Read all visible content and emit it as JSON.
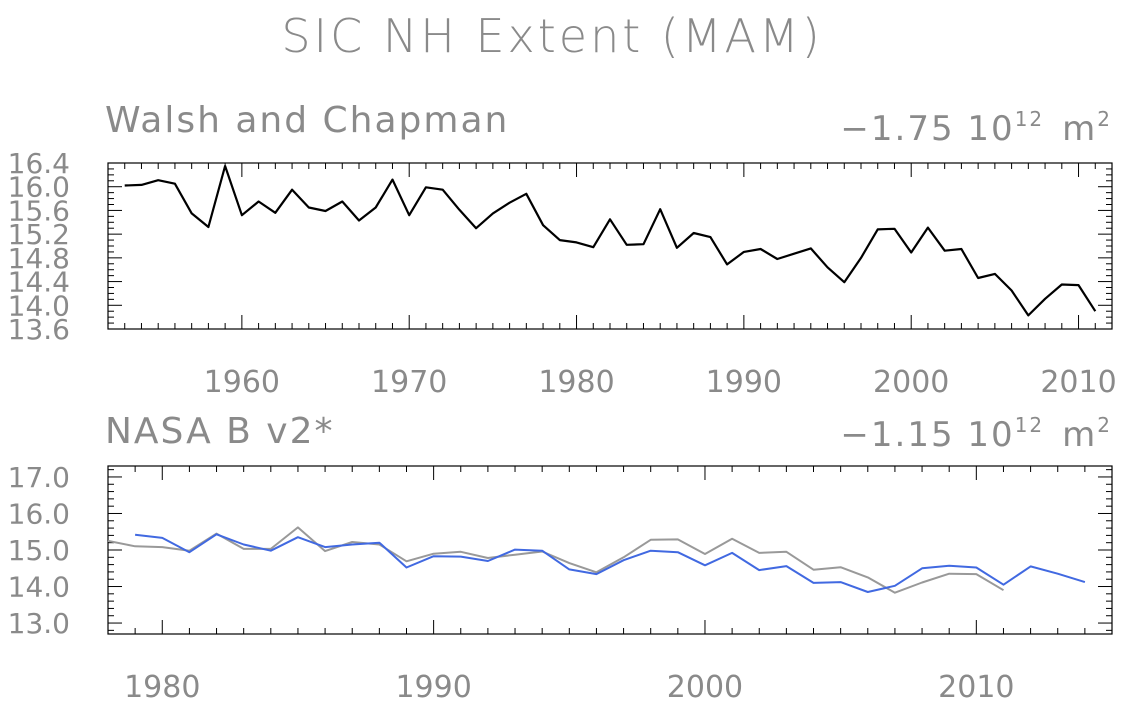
{
  "title": "SIC NH Extent (MAM)",
  "chart_data": [
    {
      "type": "line",
      "panel_label": "Walsh and Chapman",
      "trend_label": "−1.75 10",
      "trend_exp": "12",
      "trend_unit": "m",
      "trend_unit_exp": "2",
      "xlim": [
        1952,
        2012
      ],
      "ylim": [
        13.6,
        16.4
      ],
      "yticks": [
        "16.4",
        "16.0",
        "15.6",
        "15.2",
        "14.8",
        "14.4",
        "14.0",
        "13.6"
      ],
      "xticks": [
        "1960",
        "1970",
        "1980",
        "1990",
        "2000",
        "2010"
      ],
      "series": [
        {
          "color": "#000000",
          "x": [
            1953,
            1954,
            1955,
            1956,
            1957,
            1958,
            1959,
            1960,
            1961,
            1962,
            1963,
            1964,
            1965,
            1966,
            1967,
            1968,
            1969,
            1970,
            1971,
            1972,
            1973,
            1974,
            1975,
            1976,
            1977,
            1978,
            1979,
            1980,
            1981,
            1982,
            1983,
            1984,
            1985,
            1986,
            1987,
            1988,
            1989,
            1990,
            1991,
            1992,
            1993,
            1994,
            1995,
            1996,
            1997,
            1998,
            1999,
            2000,
            2001,
            2002,
            2003,
            2004,
            2005,
            2006,
            2007,
            2008,
            2009,
            2010,
            2011
          ],
          "values": [
            16.02,
            16.03,
            16.11,
            16.05,
            15.55,
            15.32,
            16.35,
            15.52,
            15.75,
            15.56,
            15.95,
            15.65,
            15.59,
            15.75,
            15.43,
            15.65,
            16.12,
            15.52,
            15.99,
            15.95,
            15.61,
            15.3,
            15.55,
            15.73,
            15.88,
            15.35,
            15.1,
            15.06,
            14.98,
            15.45,
            15.02,
            15.03,
            15.62,
            14.97,
            15.22,
            15.15,
            14.69,
            14.9,
            14.95,
            14.78,
            14.87,
            14.96,
            14.64,
            14.39,
            14.8,
            15.28,
            15.29,
            14.89,
            15.31,
            14.92,
            14.95,
            14.46,
            14.53,
            14.25,
            13.83,
            14.11,
            14.35,
            14.34,
            13.9
          ]
        }
      ]
    },
    {
      "type": "line",
      "panel_label": "NASA B v2*",
      "trend_label": "−1.15 10",
      "trend_exp": "12",
      "trend_unit": "m",
      "trend_unit_exp": "2",
      "xlim": [
        1978,
        2015
      ],
      "ylim": [
        12.7,
        17.3
      ],
      "ytick_values": [
        17.0,
        16.0,
        15.0,
        14.0,
        13.0
      ],
      "yticks": [
        "17.0",
        "16.0",
        "15.0",
        "14.0",
        "13.0"
      ],
      "xticks": [
        "1980",
        "1990",
        "2000",
        "2010"
      ],
      "series": [
        {
          "color": "#999999",
          "x": [
            1978,
            1979,
            1980,
            1981,
            1982,
            1983,
            1984,
            1985,
            1986,
            1987,
            1988,
            1989,
            1990,
            1991,
            1992,
            1993,
            1994,
            1995,
            1996,
            1997,
            1998,
            1999,
            2000,
            2001,
            2002,
            2003,
            2004,
            2005,
            2006,
            2007,
            2008,
            2009,
            2010,
            2011
          ],
          "values": [
            15.25,
            15.1,
            15.08,
            14.98,
            15.45,
            15.03,
            15.03,
            15.62,
            14.97,
            15.22,
            15.15,
            14.69,
            14.9,
            14.95,
            14.78,
            14.87,
            14.96,
            14.64,
            14.39,
            14.8,
            15.28,
            15.29,
            14.89,
            15.31,
            14.92,
            14.95,
            14.46,
            14.53,
            14.25,
            13.83,
            14.11,
            14.35,
            14.34,
            13.9
          ]
        },
        {
          "color": "#4169e1",
          "x": [
            1979,
            1980,
            1981,
            1982,
            1983,
            1984,
            1985,
            1986,
            1987,
            1988,
            1989,
            1990,
            1991,
            1992,
            1993,
            1994,
            1995,
            1996,
            1997,
            1998,
            1999,
            2000,
            2001,
            2002,
            2003,
            2004,
            2005,
            2006,
            2007,
            2008,
            2009,
            2010,
            2011,
            2012,
            2013,
            2014
          ],
          "values": [
            15.42,
            15.33,
            14.94,
            15.43,
            15.15,
            14.98,
            15.35,
            15.08,
            15.15,
            15.2,
            14.52,
            14.83,
            14.82,
            14.7,
            15.01,
            14.98,
            14.47,
            14.34,
            14.72,
            14.98,
            14.94,
            14.58,
            14.92,
            14.45,
            14.56,
            14.1,
            14.12,
            13.85,
            14.02,
            14.5,
            14.57,
            14.52,
            14.05,
            14.55,
            14.35,
            14.12
          ]
        }
      ]
    }
  ]
}
